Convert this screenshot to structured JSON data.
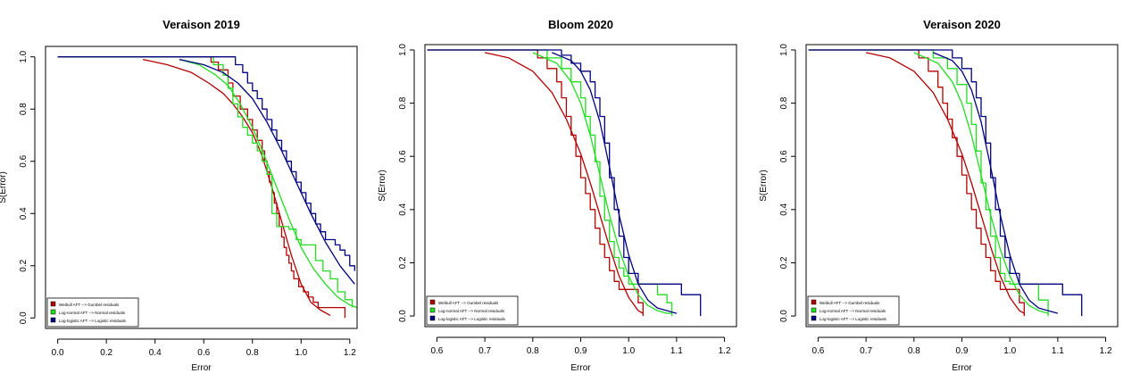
{
  "colors": {
    "weibull": "#b30000",
    "lognormal": "#22dd22",
    "loglogistic": "#000080",
    "axis": "#000000"
  },
  "chart_data": [
    {
      "type": "line",
      "title": "Veraison 2019",
      "xlabel": "Error",
      "ylabel": "S(Error)",
      "xlim": [
        -0.05,
        1.23
      ],
      "ylim": [
        -0.04,
        1.04
      ],
      "xticks": [
        0.0,
        0.2,
        0.4,
        0.6,
        0.8,
        1.0,
        1.2
      ],
      "xtick_labels": [
        "0.0",
        "0.2",
        "0.4",
        "0.6",
        "0.8",
        "1.0",
        "1.2"
      ],
      "yticks": [
        0.0,
        0.2,
        0.4,
        0.6,
        0.8,
        1.0
      ],
      "ytick_labels": [
        "0.0",
        "0.2",
        "0.4",
        "0.6",
        "0.8",
        "1.0"
      ],
      "legend": {
        "position": "bottom-left",
        "entries": [
          "Weibull AFT --> Gumbel residuals",
          "Log-normal AFT --> Normal residuals",
          "Log-logistic AFT --> Logistic residuals"
        ]
      },
      "series": [
        {
          "name": "Weibull AFT --> Gumbel residuals",
          "color_key": "weibull",
          "kind": "step",
          "x": [
            0.0,
            0.63,
            0.66,
            0.7,
            0.72,
            0.75,
            0.78,
            0.8,
            0.82,
            0.84,
            0.85,
            0.86,
            0.87,
            0.88,
            0.89,
            0.9,
            0.91,
            0.92,
            0.93,
            0.94,
            0.95,
            0.96,
            0.97,
            0.99,
            1.01,
            1.03,
            1.05,
            1.07,
            1.1,
            1.13,
            1.18
          ],
          "y": [
            1.0,
            0.98,
            0.95,
            0.9,
            0.85,
            0.8,
            0.76,
            0.72,
            0.68,
            0.64,
            0.6,
            0.56,
            0.52,
            0.48,
            0.44,
            0.4,
            0.35,
            0.31,
            0.27,
            0.24,
            0.21,
            0.18,
            0.15,
            0.12,
            0.1,
            0.08,
            0.06,
            0.04,
            0.04,
            0.04,
            0.0
          ]
        },
        {
          "name": "Weibull AFT --> Gumbel residuals",
          "color_key": "weibull",
          "kind": "curve",
          "x": [
            0.35,
            0.45,
            0.55,
            0.62,
            0.68,
            0.72,
            0.76,
            0.8,
            0.84,
            0.88,
            0.92,
            0.96,
            1.0,
            1.04,
            1.08,
            1.12
          ],
          "y": [
            0.99,
            0.97,
            0.94,
            0.9,
            0.86,
            0.82,
            0.77,
            0.71,
            0.62,
            0.5,
            0.37,
            0.24,
            0.13,
            0.06,
            0.03,
            0.01
          ]
        },
        {
          "name": "Log-normal AFT --> Normal residuals",
          "color_key": "lognormal",
          "kind": "step",
          "x": [
            0.0,
            0.64,
            0.68,
            0.7,
            0.72,
            0.74,
            0.76,
            0.78,
            0.8,
            0.82,
            0.84,
            0.86,
            0.88,
            0.9,
            0.92,
            0.95,
            0.98,
            1.0,
            1.03,
            1.06,
            1.09,
            1.12,
            1.15,
            1.18,
            1.21
          ],
          "y": [
            1.0,
            0.97,
            0.93,
            0.88,
            0.82,
            0.77,
            0.73,
            0.7,
            0.67,
            0.64,
            0.6,
            0.55,
            0.4,
            0.35,
            0.35,
            0.34,
            0.3,
            0.28,
            0.28,
            0.22,
            0.18,
            0.15,
            0.1,
            0.07,
            0.04
          ]
        },
        {
          "name": "Log-normal AFT --> Normal residuals",
          "color_key": "lognormal",
          "kind": "curve",
          "x": [
            0.5,
            0.58,
            0.65,
            0.7,
            0.75,
            0.8,
            0.85,
            0.9,
            0.95,
            1.0,
            1.05,
            1.1,
            1.15,
            1.2,
            1.23
          ],
          "y": [
            0.99,
            0.97,
            0.93,
            0.89,
            0.82,
            0.73,
            0.62,
            0.5,
            0.38,
            0.27,
            0.19,
            0.13,
            0.08,
            0.05,
            0.04
          ]
        },
        {
          "name": "Log-logistic AFT --> Logistic residuals",
          "color_key": "loglogistic",
          "kind": "step",
          "x": [
            0.0,
            0.73,
            0.76,
            0.78,
            0.8,
            0.82,
            0.84,
            0.86,
            0.88,
            0.9,
            0.92,
            0.94,
            0.96,
            0.98,
            1.0,
            1.02,
            1.04,
            1.06,
            1.08,
            1.1,
            1.12,
            1.14,
            1.16,
            1.18,
            1.2,
            1.22
          ],
          "y": [
            1.0,
            0.97,
            0.94,
            0.9,
            0.87,
            0.84,
            0.8,
            0.76,
            0.72,
            0.68,
            0.64,
            0.6,
            0.56,
            0.52,
            0.48,
            0.44,
            0.4,
            0.36,
            0.33,
            0.3,
            0.3,
            0.28,
            0.26,
            0.24,
            0.2,
            0.18
          ]
        },
        {
          "name": "Log-logistic AFT --> Logistic residuals",
          "color_key": "loglogistic",
          "kind": "curve",
          "x": [
            0.5,
            0.6,
            0.68,
            0.74,
            0.8,
            0.86,
            0.92,
            0.98,
            1.04,
            1.1,
            1.16,
            1.22
          ],
          "y": [
            0.99,
            0.97,
            0.94,
            0.9,
            0.84,
            0.75,
            0.64,
            0.52,
            0.4,
            0.29,
            0.2,
            0.13
          ]
        }
      ]
    },
    {
      "type": "line",
      "title": "Bloom 2020",
      "xlabel": "Error",
      "ylabel": "S(Error)",
      "xlim": [
        0.575,
        1.225
      ],
      "ylim": [
        -0.04,
        1.02
      ],
      "xticks": [
        0.6,
        0.7,
        0.8,
        0.9,
        1.0,
        1.1,
        1.2
      ],
      "xtick_labels": [
        "0.6",
        "0.7",
        "0.8",
        "0.9",
        "1.0",
        "1.1",
        "1.2"
      ],
      "yticks": [
        0.0,
        0.2,
        0.4,
        0.6,
        0.8,
        1.0
      ],
      "ytick_labels": [
        "0.0",
        "0.2",
        "0.4",
        "0.6",
        "0.8",
        "1.0"
      ],
      "legend": {
        "position": "bottom-left",
        "entries": [
          "Weibull AFT --> Gumbel residuals",
          "Log-normal AFT --> Normal residuals",
          "Log-logistic AFT --> Logistic residuals"
        ]
      },
      "series": [
        {
          "name": "Weibull AFT --> Gumbel residuals",
          "color_key": "weibull",
          "kind": "step",
          "x": [
            0.58,
            0.81,
            0.83,
            0.85,
            0.86,
            0.87,
            0.88,
            0.89,
            0.9,
            0.91,
            0.92,
            0.93,
            0.94,
            0.95,
            0.96,
            0.97,
            0.98,
            0.99,
            1.0,
            1.02,
            1.03
          ],
          "y": [
            1.0,
            0.97,
            0.93,
            0.88,
            0.82,
            0.75,
            0.68,
            0.6,
            0.52,
            0.46,
            0.4,
            0.33,
            0.27,
            0.22,
            0.17,
            0.13,
            0.1,
            0.1,
            0.1,
            0.05,
            0.0
          ]
        },
        {
          "name": "Weibull AFT --> Gumbel residuals",
          "color_key": "weibull",
          "kind": "curve",
          "x": [
            0.7,
            0.75,
            0.8,
            0.84,
            0.87,
            0.9,
            0.92,
            0.94,
            0.96,
            0.98,
            1.0,
            1.02,
            1.03
          ],
          "y": [
            0.99,
            0.97,
            0.92,
            0.84,
            0.74,
            0.61,
            0.5,
            0.38,
            0.26,
            0.15,
            0.07,
            0.02,
            0.01
          ]
        },
        {
          "name": "Log-normal AFT --> Normal residuals",
          "color_key": "lognormal",
          "kind": "step",
          "x": [
            0.58,
            0.83,
            0.86,
            0.88,
            0.9,
            0.91,
            0.92,
            0.93,
            0.94,
            0.95,
            0.96,
            0.97,
            0.98,
            0.99,
            1.0,
            1.03,
            1.06,
            1.08,
            1.09
          ],
          "y": [
            1.0,
            0.97,
            0.93,
            0.88,
            0.82,
            0.75,
            0.68,
            0.58,
            0.45,
            0.36,
            0.28,
            0.22,
            0.18,
            0.15,
            0.12,
            0.12,
            0.08,
            0.05,
            0.0
          ]
        },
        {
          "name": "Log-normal AFT --> Normal residuals",
          "color_key": "lognormal",
          "kind": "curve",
          "x": [
            0.8,
            0.85,
            0.88,
            0.9,
            0.92,
            0.94,
            0.96,
            0.98,
            1.0,
            1.02,
            1.04,
            1.06,
            1.08,
            1.09
          ],
          "y": [
            0.99,
            0.95,
            0.88,
            0.8,
            0.68,
            0.53,
            0.38,
            0.25,
            0.15,
            0.08,
            0.04,
            0.02,
            0.01,
            0.01
          ]
        },
        {
          "name": "Log-logistic AFT --> Logistic residuals",
          "color_key": "loglogistic",
          "kind": "step",
          "x": [
            0.58,
            0.86,
            0.88,
            0.9,
            0.92,
            0.93,
            0.94,
            0.95,
            0.96,
            0.97,
            0.98,
            0.99,
            1.0,
            1.02,
            1.05,
            1.08,
            1.11,
            1.13,
            1.15
          ],
          "y": [
            1.0,
            0.98,
            0.95,
            0.92,
            0.88,
            0.82,
            0.75,
            0.65,
            0.52,
            0.4,
            0.3,
            0.22,
            0.16,
            0.12,
            0.12,
            0.12,
            0.08,
            0.08,
            0.0
          ]
        },
        {
          "name": "Log-logistic AFT --> Logistic residuals",
          "color_key": "loglogistic",
          "kind": "curve",
          "x": [
            0.84,
            0.88,
            0.9,
            0.92,
            0.94,
            0.96,
            0.98,
            1.0,
            1.02,
            1.04,
            1.06,
            1.08,
            1.1
          ],
          "y": [
            0.99,
            0.96,
            0.92,
            0.85,
            0.73,
            0.56,
            0.38,
            0.23,
            0.12,
            0.06,
            0.03,
            0.02,
            0.01
          ]
        }
      ]
    },
    {
      "type": "line",
      "title": "Veraison 2020",
      "xlabel": "Error",
      "ylabel": "S(Error)",
      "xlim": [
        0.575,
        1.225
      ],
      "ylim": [
        -0.04,
        1.02
      ],
      "xticks": [
        0.6,
        0.7,
        0.8,
        0.9,
        1.0,
        1.1,
        1.2
      ],
      "xtick_labels": [
        "0.6",
        "0.7",
        "0.8",
        "0.9",
        "1.0",
        "1.1",
        "1.2"
      ],
      "yticks": [
        0.0,
        0.2,
        0.4,
        0.6,
        0.8,
        1.0
      ],
      "ytick_labels": [
        "0.0",
        "0.2",
        "0.4",
        "0.6",
        "0.8",
        "1.0"
      ],
      "legend": {
        "position": "bottom-left",
        "entries": [
          "Weibull AFT --> Gumbel residuals",
          "Log-normal AFT --> Normal residuals",
          "Log-logistic AFT --> Logistic residuals"
        ]
      },
      "series": [
        {
          "name": "Weibull AFT --> Gumbel residuals",
          "color_key": "weibull",
          "kind": "step",
          "x": [
            0.58,
            0.81,
            0.83,
            0.85,
            0.86,
            0.87,
            0.88,
            0.89,
            0.9,
            0.91,
            0.92,
            0.93,
            0.94,
            0.95,
            0.96,
            0.97,
            0.98,
            0.99,
            1.0,
            1.02,
            1.03
          ],
          "y": [
            1.0,
            0.97,
            0.92,
            0.86,
            0.8,
            0.74,
            0.67,
            0.6,
            0.53,
            0.46,
            0.4,
            0.33,
            0.27,
            0.22,
            0.17,
            0.13,
            0.1,
            0.1,
            0.1,
            0.05,
            0.0
          ]
        },
        {
          "name": "Weibull AFT --> Gumbel residuals",
          "color_key": "weibull",
          "kind": "curve",
          "x": [
            0.7,
            0.75,
            0.8,
            0.84,
            0.87,
            0.9,
            0.92,
            0.94,
            0.96,
            0.98,
            1.0,
            1.02,
            1.03
          ],
          "y": [
            0.99,
            0.97,
            0.92,
            0.84,
            0.74,
            0.61,
            0.5,
            0.38,
            0.26,
            0.15,
            0.07,
            0.02,
            0.01
          ]
        },
        {
          "name": "Log-normal AFT --> Normal residuals",
          "color_key": "lognormal",
          "kind": "step",
          "x": [
            0.58,
            0.84,
            0.87,
            0.89,
            0.91,
            0.92,
            0.93,
            0.94,
            0.95,
            0.96,
            0.97,
            0.98,
            0.99,
            1.0,
            1.03,
            1.06,
            1.07,
            1.08
          ],
          "y": [
            1.0,
            0.97,
            0.93,
            0.87,
            0.8,
            0.72,
            0.62,
            0.5,
            0.4,
            0.3,
            0.22,
            0.16,
            0.13,
            0.12,
            0.12,
            0.06,
            0.06,
            0.0
          ]
        },
        {
          "name": "Log-normal AFT --> Normal residuals",
          "color_key": "lognormal",
          "kind": "curve",
          "x": [
            0.8,
            0.85,
            0.88,
            0.9,
            0.92,
            0.94,
            0.96,
            0.98,
            1.0,
            1.02,
            1.04,
            1.06,
            1.08
          ],
          "y": [
            0.99,
            0.95,
            0.88,
            0.8,
            0.68,
            0.53,
            0.38,
            0.25,
            0.15,
            0.08,
            0.04,
            0.02,
            0.01
          ]
        },
        {
          "name": "Log-logistic AFT --> Logistic residuals",
          "color_key": "loglogistic",
          "kind": "step",
          "x": [
            0.58,
            0.88,
            0.9,
            0.92,
            0.93,
            0.94,
            0.95,
            0.96,
            0.97,
            0.98,
            0.99,
            1.0,
            1.02,
            1.05,
            1.08,
            1.11,
            1.13,
            1.15
          ],
          "y": [
            1.0,
            0.97,
            0.93,
            0.88,
            0.82,
            0.75,
            0.65,
            0.52,
            0.4,
            0.3,
            0.22,
            0.16,
            0.12,
            0.12,
            0.12,
            0.08,
            0.08,
            0.0
          ]
        },
        {
          "name": "Log-logistic AFT --> Logistic residuals",
          "color_key": "loglogistic",
          "kind": "curve",
          "x": [
            0.84,
            0.88,
            0.9,
            0.92,
            0.94,
            0.96,
            0.98,
            1.0,
            1.02,
            1.04,
            1.06,
            1.08,
            1.1
          ],
          "y": [
            0.99,
            0.96,
            0.92,
            0.85,
            0.73,
            0.56,
            0.38,
            0.23,
            0.12,
            0.06,
            0.03,
            0.02,
            0.01
          ]
        }
      ]
    }
  ]
}
